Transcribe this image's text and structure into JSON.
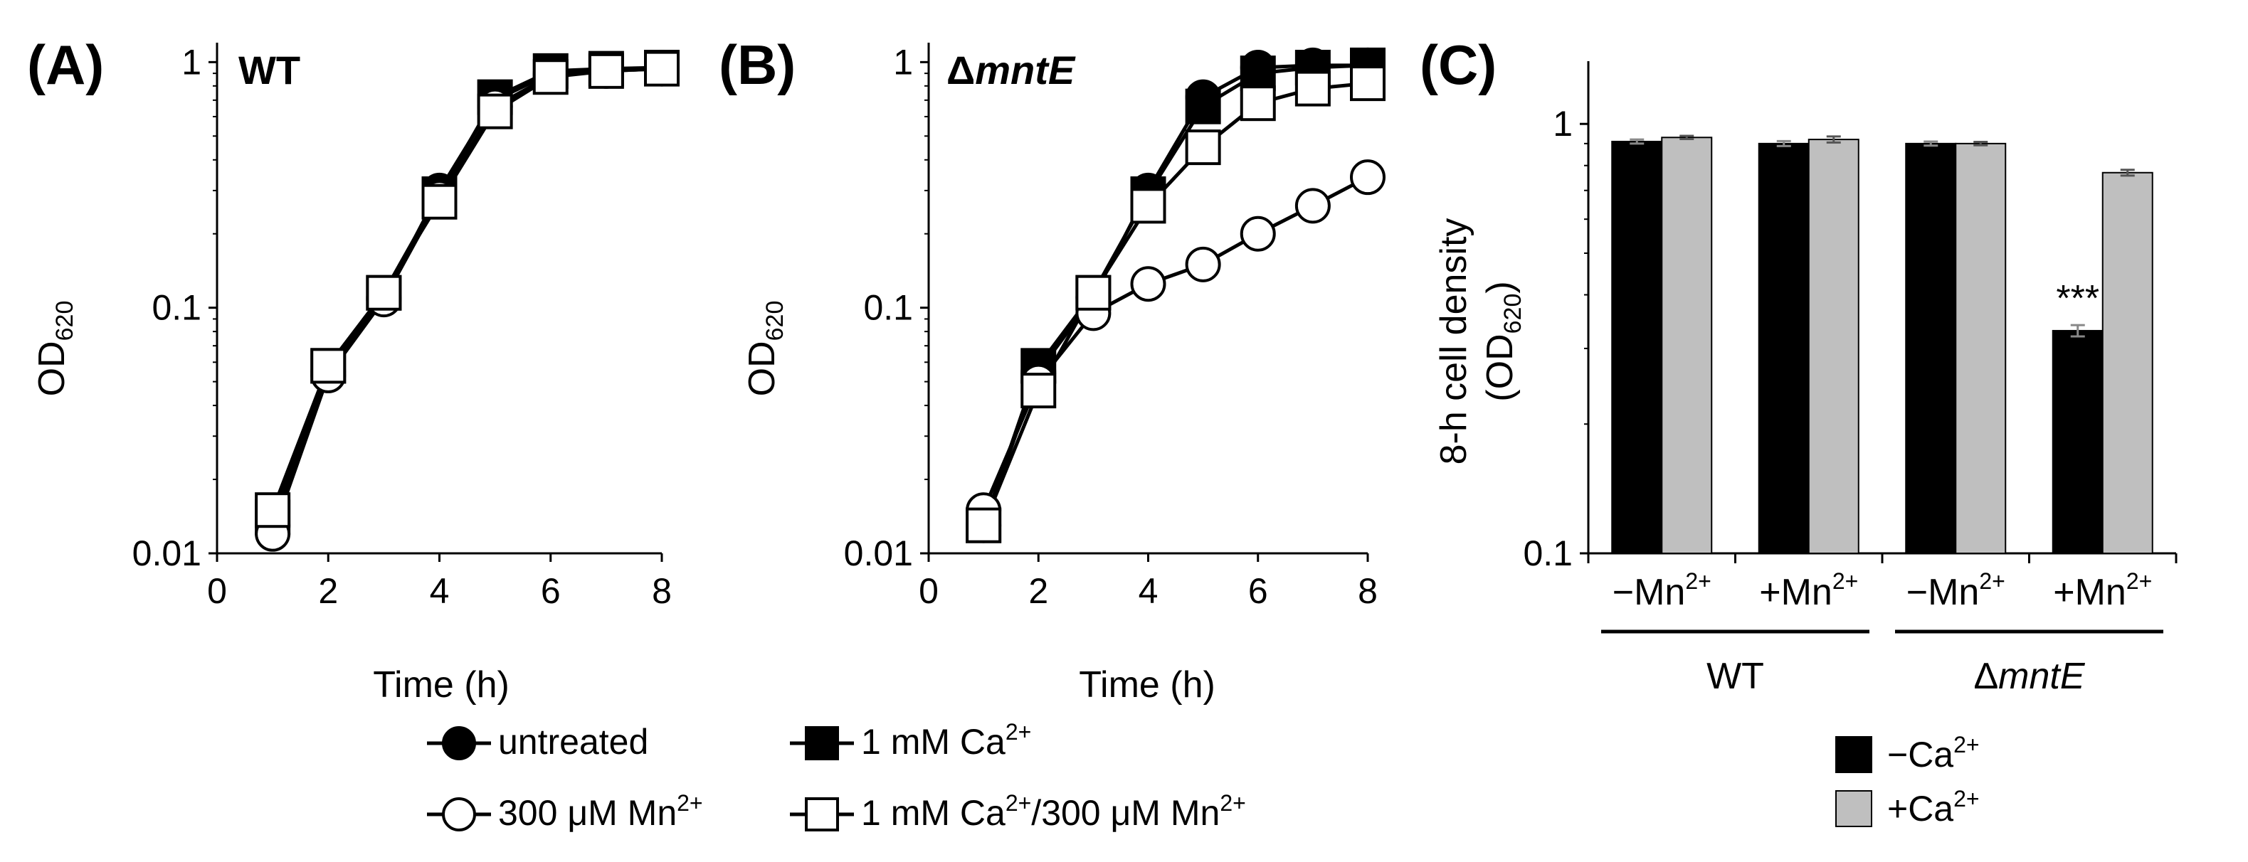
{
  "chart_data": [
    {
      "type": "line",
      "panel_label": "(A)",
      "strain_label": "WT",
      "xlabel": "Time (h)",
      "ylabel_main": "OD",
      "ylabel_sub": "620",
      "yscale": "log",
      "xlim": [
        0,
        8
      ],
      "ylim": [
        0.01,
        1.2
      ],
      "x_ticks": [
        "0",
        "2",
        "4",
        "6",
        "8"
      ],
      "y_ticks": [
        "0.01",
        "0.1",
        "1"
      ],
      "series": [
        {
          "name": "untreated",
          "marker": "filled-circle",
          "x": [
            1,
            2,
            3,
            4,
            5,
            6,
            7,
            8
          ],
          "y": [
            0.013,
            0.055,
            0.11,
            0.3,
            0.7,
            0.9,
            0.93,
            0.95
          ]
        },
        {
          "name": "1 mM Ca2+",
          "marker": "filled-square",
          "x": [
            1,
            2,
            3,
            4,
            5,
            6,
            7,
            8
          ],
          "y": [
            0.014,
            0.058,
            0.115,
            0.29,
            0.72,
            0.92,
            0.94,
            0.95
          ]
        },
        {
          "name": "300 μM Mn2+",
          "marker": "open-circle",
          "x": [
            1,
            2,
            3,
            4,
            5,
            6,
            7,
            8
          ],
          "y": [
            0.012,
            0.053,
            0.108,
            0.28,
            0.66,
            0.88,
            0.92,
            0.94
          ]
        },
        {
          "name": "1 mM Ca2+/300 μM Mn2+",
          "marker": "open-square",
          "x": [
            1,
            2,
            3,
            4,
            5,
            6,
            7,
            8
          ],
          "y": [
            0.015,
            0.058,
            0.115,
            0.27,
            0.63,
            0.87,
            0.92,
            0.94
          ]
        }
      ]
    },
    {
      "type": "line",
      "panel_label": "(B)",
      "strain_prefix": "Δ",
      "strain_label": "mntE",
      "xlabel": "Time (h)",
      "ylabel_main": "OD",
      "ylabel_sub": "620",
      "yscale": "log",
      "xlim": [
        0,
        8
      ],
      "ylim": [
        0.01,
        1.2
      ],
      "x_ticks": [
        "0",
        "2",
        "4",
        "6",
        "8"
      ],
      "y_ticks": [
        "0.01",
        "0.1",
        "1"
      ],
      "series": [
        {
          "name": "untreated",
          "marker": "filled-circle",
          "x": [
            1,
            2,
            3,
            4,
            5,
            6,
            7,
            8
          ],
          "y": [
            0.013,
            0.055,
            0.11,
            0.3,
            0.72,
            0.95,
            0.97,
            0.97
          ]
        },
        {
          "name": "1 mM Ca2+",
          "marker": "filled-square",
          "x": [
            1,
            2,
            3,
            4,
            5,
            6,
            7,
            8
          ],
          "y": [
            0.013,
            0.058,
            0.115,
            0.29,
            0.66,
            0.9,
            0.95,
            0.97
          ]
        },
        {
          "name": "300 μM Mn2+",
          "marker": "open-circle",
          "x": [
            1,
            2,
            3,
            4,
            5,
            6,
            7,
            8
          ],
          "y": [
            0.015,
            0.05,
            0.095,
            0.125,
            0.15,
            0.2,
            0.26,
            0.34
          ]
        },
        {
          "name": "1 mM Ca2+/300 μM Mn2+",
          "marker": "open-square",
          "x": [
            1,
            2,
            3,
            4,
            5,
            6,
            7,
            8
          ],
          "y": [
            0.013,
            0.046,
            0.115,
            0.26,
            0.45,
            0.68,
            0.78,
            0.82
          ]
        }
      ]
    },
    {
      "type": "bar",
      "panel_label": "(C)",
      "ylabel_line1": "8-h cell density",
      "ylabel_line2_pre": "(OD",
      "ylabel_line2_sub": "620",
      "ylabel_line2_post": ")",
      "yscale": "log",
      "ylim": [
        0.1,
        1.4
      ],
      "y_ticks": [
        "0.1",
        "1"
      ],
      "categories": [
        "−Mn",
        "+Mn",
        "−Mn",
        "+Mn"
      ],
      "category_sup": "2+",
      "groups": [
        {
          "label": "WT"
        },
        {
          "label_prefix": "Δ",
          "label": "mntE"
        }
      ],
      "series": [
        {
          "name": "−Ca",
          "sup": "2+",
          "color": "#000000",
          "values": [
            0.91,
            0.9,
            0.9,
            0.33
          ],
          "errors": [
            0.01,
            0.012,
            0.01,
            0.01
          ]
        },
        {
          "name": "+Ca",
          "sup": "2+",
          "color": "#bfbfbf",
          "values": [
            0.93,
            0.92,
            0.9,
            0.77
          ],
          "errors": [
            0.008,
            0.015,
            0.008,
            0.012
          ]
        }
      ],
      "annotations": [
        {
          "text": "***",
          "category_index": 3,
          "series_index": 0
        }
      ]
    }
  ],
  "legend_lines": {
    "items": [
      {
        "label": "untreated",
        "marker": "filled-circle"
      },
      {
        "label": "1 mM Ca",
        "sup": "2+",
        "marker": "filled-square"
      },
      {
        "label": "300 μM Mn",
        "sup": "2+",
        "marker": "open-circle"
      },
      {
        "label": "1 mM Ca",
        "sup": "2+",
        "label2": "/300 μM Mn",
        "sup2": "2+",
        "marker": "open-square"
      }
    ]
  },
  "legend_bars": {
    "items": [
      {
        "label": "−Ca",
        "sup": "2+",
        "color": "#000000"
      },
      {
        "label": "+Ca",
        "sup": "2+",
        "color": "#bfbfbf"
      }
    ]
  }
}
